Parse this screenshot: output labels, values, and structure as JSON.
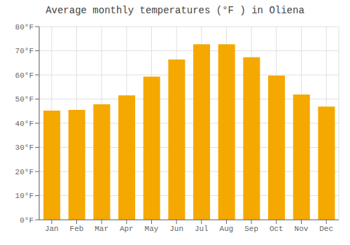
{
  "chart_data": {
    "type": "bar",
    "title": "Average monthly temperatures (°F ) in Oliena",
    "categories": [
      "Jan",
      "Feb",
      "Mar",
      "Apr",
      "May",
      "Jun",
      "Jul",
      "Aug",
      "Sep",
      "Oct",
      "Nov",
      "Dec"
    ],
    "values": [
      45.2,
      45.5,
      47.8,
      51.5,
      59.3,
      66.4,
      72.7,
      72.7,
      67.3,
      59.7,
      51.9,
      46.9
    ],
    "color": "#F5A800",
    "ylim": [
      0,
      80
    ],
    "yticks": [
      {
        "value": 0,
        "label": "0°F"
      },
      {
        "value": 10,
        "label": "10°F"
      },
      {
        "value": 20,
        "label": "20°F"
      },
      {
        "value": 30,
        "label": "30°F"
      },
      {
        "value": 40,
        "label": "40°F"
      },
      {
        "value": 50,
        "label": "50°F"
      },
      {
        "value": 60,
        "label": "60°F"
      },
      {
        "value": 70,
        "label": "70°F"
      },
      {
        "value": 80,
        "label": "80°F"
      }
    ],
    "grid": true
  }
}
